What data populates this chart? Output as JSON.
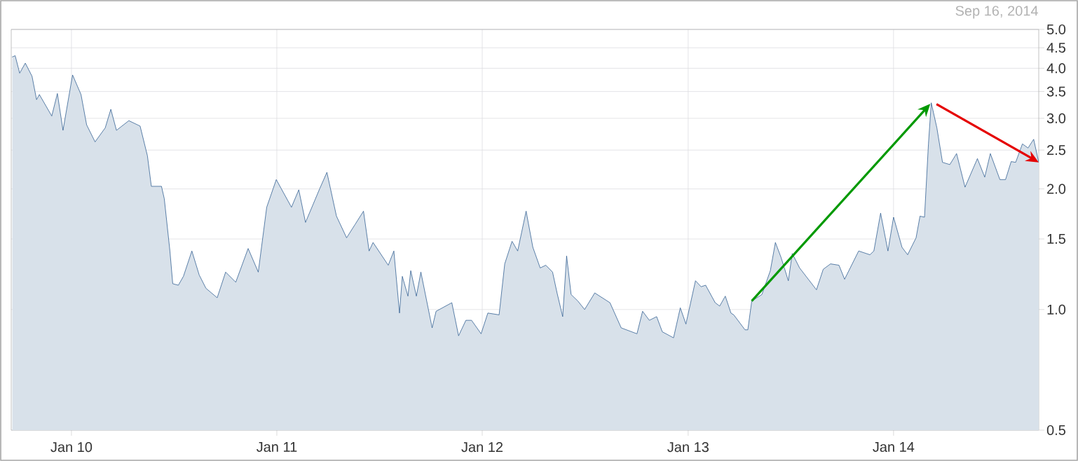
{
  "chart_data": {
    "type": "area",
    "annotations": [
      "Sep 16, 2014"
    ],
    "x": [
      "2009-09-18",
      "2009-09-23",
      "2009-10-01",
      "2009-10-11",
      "2009-10-23",
      "2009-10-31",
      "2009-11-05",
      "2009-11-27",
      "2009-12-07",
      "2009-12-17",
      "2010-01-03",
      "2010-01-18",
      "2010-01-28",
      "2010-02-12",
      "2010-03-02",
      "2010-03-12",
      "2010-03-22",
      "2010-04-13",
      "2010-05-03",
      "2010-05-16",
      "2010-05-23",
      "2010-06-10",
      "2010-06-15",
      "2010-06-25",
      "2010-06-30",
      "2010-07-10",
      "2010-07-19",
      "2010-08-03",
      "2010-08-16",
      "2010-08-28",
      "2010-09-17",
      "2010-10-02",
      "2010-10-20",
      "2010-11-11",
      "2010-11-29",
      "2010-12-14",
      "2010-12-31",
      "2011-01-27",
      "2011-02-09",
      "2011-02-21",
      "2011-03-18",
      "2011-03-31",
      "2011-04-17",
      "2011-05-05",
      "2011-05-20",
      "2011-06-04",
      "2011-06-14",
      "2011-06-21",
      "2011-07-18",
      "2011-07-28",
      "2011-08-07",
      "2011-08-12",
      "2011-08-22",
      "2011-08-27",
      "2011-09-06",
      "2011-09-14",
      "2011-10-04",
      "2011-10-11",
      "2011-11-08",
      "2011-11-20",
      "2011-12-03",
      "2011-12-13",
      "2011-12-30",
      "2012-01-11",
      "2012-01-31",
      "2012-02-10",
      "2012-02-23",
      "2012-03-04",
      "2012-03-19",
      "2012-03-31",
      "2012-04-13",
      "2012-04-23",
      "2012-05-05",
      "2012-05-13",
      "2012-05-23",
      "2012-05-30",
      "2012-06-07",
      "2012-06-19",
      "2012-07-01",
      "2012-07-19",
      "2012-08-15",
      "2012-09-04",
      "2012-10-02",
      "2012-10-12",
      "2012-10-24",
      "2012-11-06",
      "2012-11-16",
      "2012-12-06",
      "2012-12-18",
      "2012-12-28",
      "2013-01-14",
      "2013-01-24",
      "2013-02-01",
      "2013-02-18",
      "2013-02-26",
      "2013-03-08",
      "2013-03-18",
      "2013-03-23",
      "2013-04-12",
      "2013-04-17",
      "2013-04-24",
      "2013-05-12",
      "2013-05-27",
      "2013-06-05",
      "2013-06-15",
      "2013-06-28",
      "2013-07-05",
      "2013-07-18",
      "2013-08-17",
      "2013-08-29",
      "2013-09-11",
      "2013-09-26",
      "2013-10-06",
      "2013-10-31",
      "2013-11-20",
      "2013-11-27",
      "2013-12-09",
      "2013-12-22",
      "2014-01-01",
      "2014-01-16",
      "2014-01-26",
      "2014-02-10",
      "2014-02-17",
      "2014-02-25",
      "2014-03-04",
      "2014-03-09",
      "2014-03-19",
      "2014-03-29",
      "2014-04-11",
      "2014-04-23",
      "2014-05-08",
      "2014-05-30",
      "2014-06-12",
      "2014-06-22",
      "2014-07-09",
      "2014-07-19",
      "2014-07-29",
      "2014-08-06",
      "2014-08-18",
      "2014-08-28",
      "2014-09-07",
      "2014-09-16"
    ],
    "series": [
      {
        "color": "#1c4f86",
        "values": [
          4.27,
          4.3,
          3.89,
          4.12,
          3.82,
          3.34,
          3.44,
          3.04,
          3.46,
          2.8,
          3.85,
          3.44,
          2.89,
          2.62,
          2.84,
          3.16,
          2.8,
          2.96,
          2.87,
          2.42,
          2.03,
          2.03,
          1.89,
          1.4,
          1.16,
          1.15,
          1.21,
          1.4,
          1.22,
          1.13,
          1.07,
          1.24,
          1.17,
          1.42,
          1.24,
          1.8,
          2.11,
          1.8,
          1.99,
          1.65,
          2.0,
          2.2,
          1.71,
          1.51,
          1.63,
          1.76,
          1.4,
          1.47,
          1.29,
          1.4,
          0.98,
          1.21,
          1.08,
          1.25,
          1.08,
          1.24,
          0.9,
          0.99,
          1.04,
          0.86,
          0.94,
          0.94,
          0.87,
          0.98,
          0.97,
          1.3,
          1.48,
          1.4,
          1.76,
          1.43,
          1.27,
          1.29,
          1.24,
          1.1,
          0.96,
          1.36,
          1.09,
          1.05,
          1.0,
          1.1,
          1.04,
          0.9,
          0.87,
          0.99,
          0.94,
          0.96,
          0.88,
          0.85,
          1.01,
          0.92,
          1.18,
          1.14,
          1.15,
          1.04,
          1.02,
          1.08,
          0.98,
          0.97,
          0.89,
          0.89,
          1.05,
          1.09,
          1.25,
          1.47,
          1.35,
          1.18,
          1.38,
          1.27,
          1.12,
          1.26,
          1.3,
          1.29,
          1.19,
          1.4,
          1.37,
          1.4,
          1.74,
          1.4,
          1.7,
          1.43,
          1.37,
          1.51,
          1.71,
          1.7,
          2.59,
          3.28,
          2.84,
          2.33,
          2.3,
          2.45,
          2.02,
          2.38,
          2.14,
          2.45,
          2.11,
          2.11,
          2.34,
          2.33,
          2.59,
          2.53,
          2.66,
          2.33
        ]
      }
    ],
    "xlim": [
      "2009-09-16",
      "2014-09-16"
    ],
    "xticks": [
      {
        "value": "2010-01-01",
        "label": "Jan 10"
      },
      {
        "value": "2011-01-01",
        "label": "Jan 11"
      },
      {
        "value": "2012-01-01",
        "label": "Jan 12"
      },
      {
        "value": "2013-01-01",
        "label": "Jan 13"
      },
      {
        "value": "2014-01-01",
        "label": "Jan 14"
      }
    ],
    "ylim": [
      0.5,
      5.0
    ],
    "log": true,
    "yticks": [
      0.5,
      {
        "value": 1,
        "label": "1.0"
      },
      1.5,
      {
        "value": 2,
        "label": "2.0"
      },
      2.5,
      {
        "value": 3,
        "label": "3.0"
      },
      3.5,
      {
        "value": 4,
        "label": "4.0"
      },
      4.5,
      {
        "value": 5,
        "label": "5.0"
      }
    ],
    "grid": true
  }
}
